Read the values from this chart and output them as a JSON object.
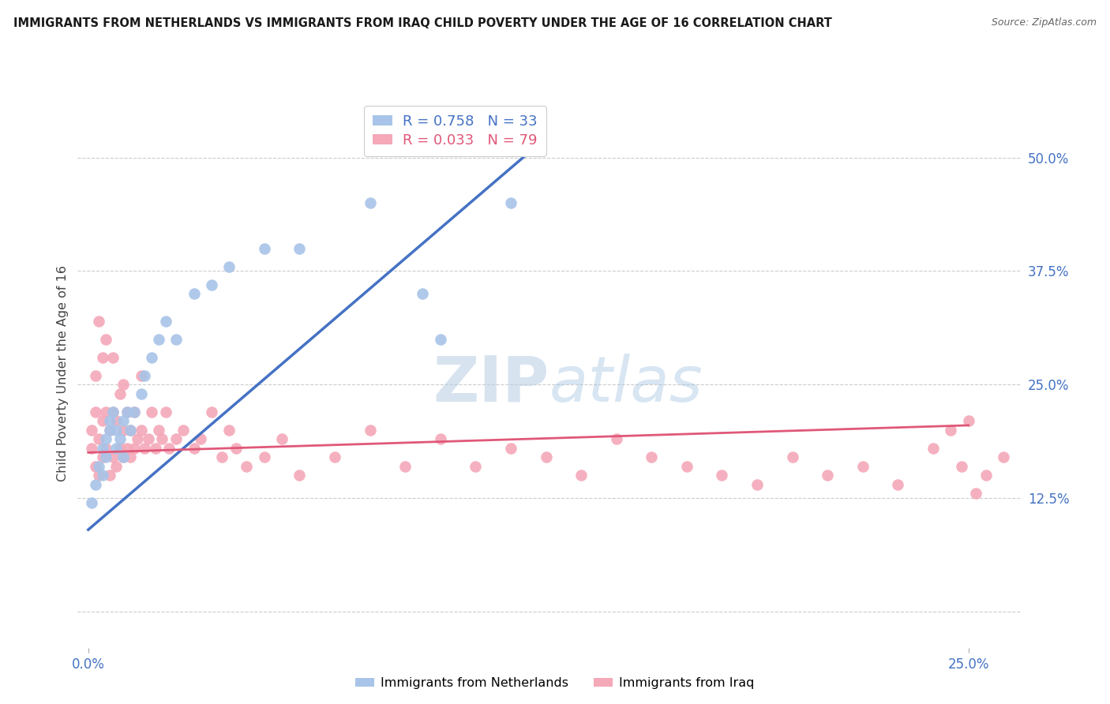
{
  "title": "IMMIGRANTS FROM NETHERLANDS VS IMMIGRANTS FROM IRAQ CHILD POVERTY UNDER THE AGE OF 16 CORRELATION CHART",
  "source": "Source: ZipAtlas.com",
  "ylabel": "Child Poverty Under the Age of 16",
  "netherlands_R": 0.758,
  "netherlands_N": 33,
  "iraq_R": 0.033,
  "iraq_N": 79,
  "netherlands_color": "#a8c4e8",
  "iraq_color": "#f4a8b8",
  "netherlands_line_color": "#4472c4",
  "iraq_line_color": "#e05878",
  "ytick_positions": [
    0.0,
    0.125,
    0.25,
    0.375,
    0.5
  ],
  "ytick_labels": [
    "",
    "12.5%",
    "25.0%",
    "37.5%",
    "50.0%"
  ],
  "xlim_data": [
    0.0,
    0.25
  ],
  "ylim_data": [
    0.0,
    0.5
  ],
  "nl_line_x0": 0.0,
  "nl_line_y0": 0.09,
  "nl_line_x1": 0.125,
  "nl_line_y1": 0.505,
  "iq_line_x0": 0.0,
  "iq_line_y0": 0.175,
  "iq_line_x1": 0.25,
  "iq_line_y1": 0.205,
  "netherlands_x": [
    0.001,
    0.002,
    0.003,
    0.004,
    0.004,
    0.005,
    0.005,
    0.006,
    0.006,
    0.007,
    0.008,
    0.008,
    0.009,
    0.01,
    0.01,
    0.011,
    0.012,
    0.013,
    0.015,
    0.016,
    0.018,
    0.02,
    0.022,
    0.025,
    0.03,
    0.035,
    0.04,
    0.05,
    0.06,
    0.08,
    0.095,
    0.1,
    0.12
  ],
  "netherlands_y": [
    0.12,
    0.14,
    0.16,
    0.15,
    0.18,
    0.17,
    0.19,
    0.2,
    0.21,
    0.22,
    0.18,
    0.2,
    0.19,
    0.21,
    0.17,
    0.22,
    0.2,
    0.22,
    0.24,
    0.26,
    0.28,
    0.3,
    0.32,
    0.3,
    0.35,
    0.36,
    0.38,
    0.4,
    0.4,
    0.45,
    0.35,
    0.3,
    0.45
  ],
  "iraq_x": [
    0.001,
    0.001,
    0.002,
    0.002,
    0.002,
    0.003,
    0.003,
    0.003,
    0.004,
    0.004,
    0.004,
    0.005,
    0.005,
    0.005,
    0.006,
    0.006,
    0.007,
    0.007,
    0.007,
    0.008,
    0.008,
    0.009,
    0.009,
    0.01,
    0.01,
    0.01,
    0.011,
    0.011,
    0.012,
    0.012,
    0.013,
    0.013,
    0.014,
    0.015,
    0.015,
    0.016,
    0.017,
    0.018,
    0.019,
    0.02,
    0.021,
    0.022,
    0.023,
    0.025,
    0.027,
    0.03,
    0.032,
    0.035,
    0.038,
    0.04,
    0.042,
    0.045,
    0.05,
    0.055,
    0.06,
    0.07,
    0.08,
    0.09,
    0.1,
    0.11,
    0.12,
    0.13,
    0.14,
    0.15,
    0.16,
    0.17,
    0.18,
    0.19,
    0.2,
    0.21,
    0.22,
    0.23,
    0.24,
    0.245,
    0.248,
    0.25,
    0.252,
    0.255,
    0.26
  ],
  "iraq_y": [
    0.18,
    0.2,
    0.16,
    0.22,
    0.26,
    0.15,
    0.19,
    0.32,
    0.17,
    0.21,
    0.28,
    0.18,
    0.22,
    0.3,
    0.15,
    0.2,
    0.17,
    0.22,
    0.28,
    0.16,
    0.21,
    0.18,
    0.24,
    0.17,
    0.2,
    0.25,
    0.18,
    0.22,
    0.17,
    0.2,
    0.18,
    0.22,
    0.19,
    0.2,
    0.26,
    0.18,
    0.19,
    0.22,
    0.18,
    0.2,
    0.19,
    0.22,
    0.18,
    0.19,
    0.2,
    0.18,
    0.19,
    0.22,
    0.17,
    0.2,
    0.18,
    0.16,
    0.17,
    0.19,
    0.15,
    0.17,
    0.2,
    0.16,
    0.19,
    0.16,
    0.18,
    0.17,
    0.15,
    0.19,
    0.17,
    0.16,
    0.15,
    0.14,
    0.17,
    0.15,
    0.16,
    0.14,
    0.18,
    0.2,
    0.16,
    0.21,
    0.13,
    0.15,
    0.17
  ]
}
